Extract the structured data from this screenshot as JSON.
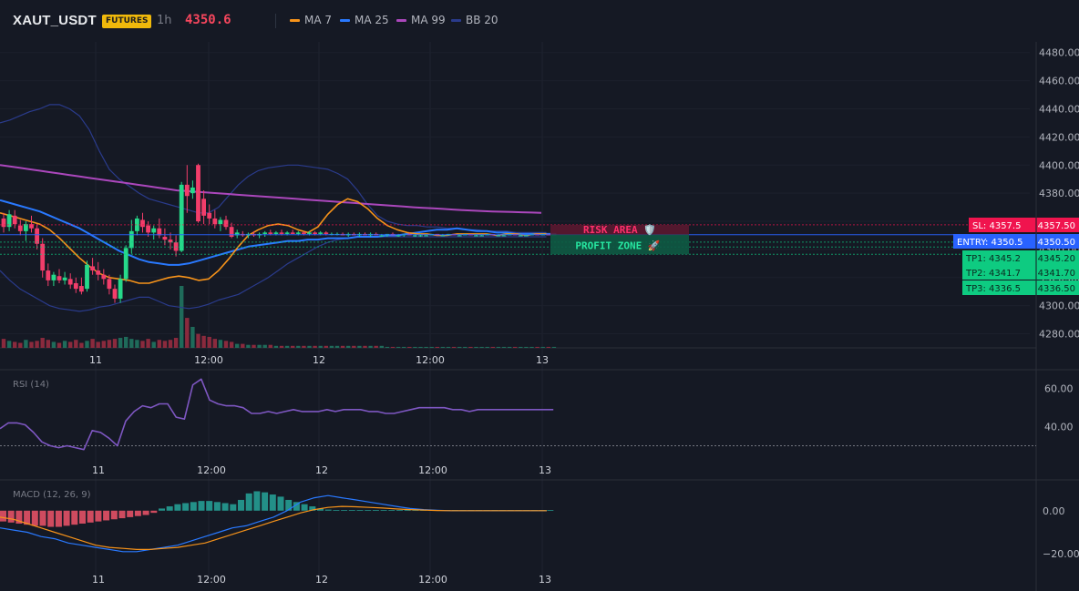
{
  "header": {
    "symbol": "XAUT_USDT",
    "badge": "FUTURES",
    "timeframe": "1h",
    "last_price": "4350.6"
  },
  "legend": [
    {
      "label": "MA 7",
      "color": "#f7931a"
    },
    {
      "label": "MA 25",
      "color": "#2979ff"
    },
    {
      "label": "MA 99",
      "color": "#ab47bc"
    },
    {
      "label": "BB 20",
      "color": "#2a3b8c"
    }
  ],
  "colors": {
    "bull": "#26d98a",
    "bear": "#f23d6a",
    "entry": "#2962ff",
    "sl": "#f0144e",
    "tp": "#0ecb81",
    "rsi": "#7e57c2"
  },
  "zones": {
    "risk_label": "RISK AREA 🛡️",
    "profit_label": "PROFIT ZONE 🚀"
  },
  "chart_data": [
    {
      "type": "candlestick",
      "title": "",
      "ylim": [
        4270,
        4485
      ],
      "y_ticks": [
        "4480.00",
        "4460.00",
        "4440.00",
        "4420.00",
        "4400.00",
        "4380.00",
        "4360.00",
        "4340.00",
        "4320.00",
        "4300.00",
        "4280.00"
      ],
      "x_ticks": [
        "11",
        "12:00",
        "12",
        "12:00",
        "13"
      ],
      "ohlc": [
        [
          4362,
          4366,
          4352,
          4356
        ],
        [
          4356,
          4368,
          4353,
          4365
        ],
        [
          4364,
          4368,
          4355,
          4358
        ],
        [
          4357,
          4361,
          4350,
          4353
        ],
        [
          4353,
          4360,
          4346,
          4358
        ],
        [
          4358,
          4364,
          4352,
          4355
        ],
        [
          4355,
          4358,
          4340,
          4344
        ],
        [
          4344,
          4348,
          4320,
          4325
        ],
        [
          4325,
          4330,
          4314,
          4318
        ],
        [
          4318,
          4324,
          4314,
          4322
        ],
        [
          4321,
          4326,
          4316,
          4318
        ],
        [
          4318,
          4324,
          4315,
          4320
        ],
        [
          4319,
          4323,
          4312,
          4315
        ],
        [
          4316,
          4320,
          4309,
          4312
        ],
        [
          4314,
          4320,
          4308,
          4310
        ],
        [
          4312,
          4332,
          4310,
          4329
        ],
        [
          4328,
          4334,
          4322,
          4325
        ],
        [
          4325,
          4331,
          4318,
          4322
        ],
        [
          4322,
          4326,
          4315,
          4319
        ],
        [
          4319,
          4322,
          4308,
          4312
        ],
        [
          4312,
          4315,
          4302,
          4305
        ],
        [
          4305,
          4322,
          4302,
          4319
        ],
        [
          4319,
          4343,
          4317,
          4341
        ],
        [
          4341,
          4361,
          4337,
          4353
        ],
        [
          4353,
          4364,
          4350,
          4362
        ],
        [
          4361,
          4366,
          4352,
          4356
        ],
        [
          4357,
          4360,
          4349,
          4352
        ],
        [
          4352,
          4357,
          4347,
          4355
        ],
        [
          4355,
          4362,
          4348,
          4350
        ],
        [
          4349,
          4355,
          4343,
          4347
        ],
        [
          4347,
          4352,
          4340,
          4345
        ],
        [
          4345,
          4350,
          4335,
          4339
        ],
        [
          4339,
          4388,
          4338,
          4386
        ],
        [
          4386,
          4400,
          4366,
          4378
        ],
        [
          4380,
          4389,
          4376,
          4384
        ],
        [
          4400,
          4401,
          4359,
          4360
        ],
        [
          4376,
          4382,
          4358,
          4364
        ],
        [
          4366,
          4372,
          4358,
          4362
        ],
        [
          4362,
          4368,
          4355,
          4358
        ],
        [
          4358,
          4363,
          4353,
          4361
        ],
        [
          4361,
          4364,
          4354,
          4356
        ],
        [
          4356,
          4359,
          4348,
          4349
        ],
        [
          4350,
          4354,
          4348,
          4352
        ],
        [
          4351,
          4353,
          4349,
          4350
        ],
        [
          4350,
          4352,
          4348,
          4351
        ],
        [
          4351,
          4353,
          4349,
          4350
        ],
        [
          4350,
          4352,
          4348,
          4351
        ],
        [
          4351,
          4353,
          4349,
          4352
        ],
        [
          4352,
          4354,
          4350,
          4351
        ],
        [
          4351,
          4353,
          4350,
          4352
        ],
        [
          4352,
          4354,
          4350,
          4351
        ],
        [
          4351,
          4353,
          4350,
          4352
        ],
        [
          4352,
          4354,
          4351,
          4351
        ],
        [
          4351,
          4353,
          4350,
          4352
        ],
        [
          4352,
          4353,
          4350,
          4351
        ],
        [
          4351,
          4353,
          4350,
          4352
        ],
        [
          4352,
          4353,
          4350,
          4351
        ],
        [
          4351,
          4353,
          4350,
          4352
        ],
        [
          4352,
          4353,
          4350,
          4351
        ],
        [
          4351,
          4352,
          4350,
          4351
        ],
        [
          4351,
          4352,
          4350,
          4351
        ],
        [
          4351,
          4352,
          4350,
          4350
        ],
        [
          4350,
          4352,
          4349,
          4351
        ],
        [
          4351,
          4352,
          4350,
          4350
        ],
        [
          4350,
          4352,
          4349,
          4351
        ],
        [
          4351,
          4352,
          4350,
          4350
        ],
        [
          4350,
          4352,
          4349,
          4351
        ],
        [
          4351,
          4352,
          4350,
          4350
        ],
        [
          4350,
          4351,
          4349,
          4350
        ],
        [
          4350,
          4351,
          4349,
          4351
        ],
        [
          4351,
          4352,
          4350,
          4350
        ],
        [
          4350,
          4351,
          4349,
          4350
        ],
        [
          4350,
          4351,
          4349,
          4351
        ],
        [
          4351,
          4352,
          4350,
          4350
        ],
        [
          4350,
          4351,
          4349,
          4350
        ],
        [
          4350,
          4351,
          4349,
          4350
        ],
        [
          4350,
          4351,
          4350,
          4350
        ],
        [
          4350,
          4351,
          4350,
          4351
        ],
        [
          4351,
          4351,
          4350,
          4350
        ],
        [
          4350,
          4351,
          4350,
          4350
        ],
        [
          4350,
          4351,
          4350,
          4351
        ],
        [
          4351,
          4351,
          4350,
          4350
        ],
        [
          4350,
          4351,
          4350,
          4350
        ],
        [
          4350,
          4351,
          4350,
          4351
        ],
        [
          4351,
          4351,
          4350,
          4350
        ],
        [
          4350,
          4351,
          4350,
          4350
        ],
        [
          4350,
          4351,
          4350,
          4350
        ],
        [
          4350,
          4351,
          4350,
          4351
        ],
        [
          4351,
          4351,
          4350,
          4350
        ],
        [
          4350,
          4351,
          4350,
          4350
        ],
        [
          4350,
          4351,
          4350,
          4350
        ],
        [
          4350,
          4351,
          4350,
          4351
        ],
        [
          4351,
          4351,
          4350,
          4350
        ],
        [
          4350,
          4351,
          4350,
          4350
        ],
        [
          4350,
          4351,
          4350,
          4350
        ],
        [
          4350,
          4351,
          4350,
          4351
        ],
        [
          4351,
          4351,
          4350,
          4350
        ],
        [
          4350,
          4351,
          4350,
          4351
        ],
        [
          4351,
          4351,
          4350,
          4350
        ],
        [
          4350,
          4351,
          4350,
          4351
        ]
      ],
      "volume": [
        9,
        7,
        6,
        5,
        8,
        6,
        7,
        10,
        8,
        6,
        5,
        7,
        6,
        8,
        5,
        7,
        9,
        6,
        7,
        8,
        9,
        10,
        11,
        9,
        8,
        7,
        9,
        6,
        8,
        7,
        8,
        10,
        62,
        30,
        21,
        14,
        12,
        11,
        9,
        8,
        7,
        6,
        4,
        4,
        3,
        3,
        3,
        3,
        3,
        2,
        2,
        2,
        2,
        2,
        2,
        2,
        2,
        2,
        2,
        2,
        2,
        2,
        2,
        2,
        2,
        2,
        2,
        2,
        2,
        1,
        1,
        1,
        1,
        1,
        1,
        1,
        1,
        1,
        1,
        1,
        1,
        1,
        1,
        1,
        1,
        1,
        1,
        1,
        1,
        1,
        1,
        1,
        1,
        1,
        1,
        1,
        1,
        1,
        1,
        1
      ],
      "ma99": [
        4400,
        4399,
        4398,
        4397,
        4396,
        4395,
        4394,
        4393,
        4392,
        4391,
        4390,
        4389,
        4388,
        4387,
        4386,
        4385,
        4384,
        4383,
        4382,
        4381.5,
        4381,
        4380.5,
        4380,
        4379.5,
        4379,
        4378.5,
        4378,
        4377.5,
        4377,
        4376.5,
        4376,
        4375.5,
        4375,
        4374.5,
        4374,
        4373.5,
        4373,
        4372.5,
        4372,
        4371.5,
        4371,
        4370.5,
        4370,
        4369.6,
        4369.2,
        4368.8,
        4368.4,
        4368,
        4367.6,
        4367.3,
        4367,
        4366.8,
        4366.6,
        4366.4,
        4366.2,
        4366
      ],
      "ma25": [
        4375,
        4373,
        4371,
        4369,
        4367,
        4364,
        4361,
        4358,
        4355,
        4351,
        4347,
        4343,
        4339,
        4336,
        4333,
        4331,
        4330,
        4329,
        4329,
        4330,
        4332,
        4334,
        4336,
        4338,
        4340,
        4342,
        4343,
        4344,
        4345,
        4346,
        4346,
        4347,
        4347,
        4348,
        4348,
        4348,
        4349,
        4349,
        4349,
        4350,
        4350,
        4351,
        4352,
        4353,
        4354,
        4354,
        4355,
        4354,
        4353,
        4353,
        4352,
        4352,
        4351,
        4351,
        4351,
        4351,
        4351
      ],
      "ma7": [
        4366,
        4364,
        4362,
        4360,
        4358,
        4354,
        4348,
        4341,
        4334,
        4328,
        4323,
        4320,
        4319,
        4318,
        4316,
        4316,
        4318,
        4320,
        4321,
        4320,
        4318,
        4319,
        4325,
        4333,
        4342,
        4350,
        4354,
        4357,
        4358,
        4357,
        4354,
        4352,
        4356,
        4365,
        4372,
        4376,
        4374,
        4369,
        4362,
        4357,
        4354,
        4352,
        4351,
        4351,
        4350,
        4350,
        4351,
        4351,
        4351,
        4351,
        4350,
        4351,
        4351,
        4350,
        4351,
        4351
      ],
      "bb_upper": [
        4430,
        4432,
        4435,
        4438,
        4440,
        4443,
        4443,
        4440,
        4435,
        4425,
        4410,
        4397,
        4390,
        4385,
        4380,
        4376,
        4374,
        4372,
        4370,
        4368,
        4366,
        4366,
        4370,
        4378,
        4386,
        4392,
        4396,
        4398,
        4399,
        4400,
        4400,
        4399,
        4398,
        4397,
        4394,
        4390,
        4382,
        4372,
        4364,
        4360,
        4358,
        4357,
        4357,
        4356,
        4356,
        4355,
        4355,
        4354,
        4354,
        4353,
        4353,
        4353,
        4352,
        4352,
        4352,
        4352
      ],
      "bb_lower": [
        4325,
        4318,
        4312,
        4308,
        4304,
        4300,
        4298,
        4297,
        4296,
        4297,
        4299,
        4300,
        4302,
        4304,
        4306,
        4306,
        4303,
        4300,
        4299,
        4298,
        4299,
        4301,
        4304,
        4306,
        4308,
        4312,
        4316,
        4320,
        4325,
        4330,
        4334,
        4338,
        4342,
        4345,
        4347,
        4348,
        4349,
        4349,
        4349,
        4349,
        4349,
        4349,
        4349,
        4349,
        4349,
        4349,
        4349,
        4349,
        4349,
        4349,
        4349,
        4349,
        4349,
        4349,
        4349,
        4349
      ],
      "levels": [
        {
          "label": "SL: 4357.5",
          "value": 4357.5,
          "price": "4357.50",
          "kind": "sl"
        },
        {
          "label": "ENTRY: 4350.5",
          "value": 4350.5,
          "price": "4350.50",
          "kind": "entry"
        },
        {
          "label": "TP1: 4345.2",
          "value": 4345.2,
          "price": "4345.20",
          "kind": "tp"
        },
        {
          "label": "TP2: 4341.7",
          "value": 4341.7,
          "price": "4341.70",
          "kind": "tp"
        },
        {
          "label": "TP3: 4336.5",
          "value": 4336.5,
          "price": "4336.50",
          "kind": "tp"
        }
      ]
    },
    {
      "type": "line",
      "title": "RSI (14)",
      "ylim": [
        25,
        68
      ],
      "y_ticks": [
        "60.00",
        "40.00"
      ],
      "x_ticks": [
        "11",
        "12:00",
        "12",
        "12:00",
        "13"
      ],
      "level": 30,
      "values": [
        39,
        42,
        42,
        41,
        37,
        32,
        30,
        29,
        30,
        29,
        28,
        38,
        37,
        34,
        30,
        43,
        48,
        51,
        50,
        52,
        52,
        45,
        44,
        62,
        65,
        54,
        52,
        51,
        51,
        50,
        47,
        47,
        48,
        47,
        48,
        49,
        48,
        48,
        48,
        49,
        48,
        49,
        49,
        49,
        48,
        48,
        47,
        47,
        48,
        49,
        50,
        50,
        50,
        50,
        49,
        49,
        48,
        49,
        49,
        49,
        49,
        49,
        49,
        49,
        49,
        49,
        49
      ]
    },
    {
      "type": "bar",
      "title": "MACD (12, 26, 9)",
      "ylim": [
        -25,
        13
      ],
      "y_ticks": [
        "0.00",
        "−20.00"
      ],
      "x_ticks": [
        "11",
        "12:00",
        "12",
        "12:00",
        "13"
      ],
      "histogram": [
        -5,
        -5.5,
        -6,
        -6.5,
        -7,
        -7,
        -7.5,
        -7.5,
        -7,
        -6.5,
        -6,
        -5.5,
        -5,
        -4.5,
        -4,
        -3.5,
        -3,
        -2.5,
        -2,
        -1,
        1,
        2,
        3,
        3.5,
        4,
        4.5,
        4.5,
        4,
        3.5,
        3,
        5,
        8,
        9,
        8.5,
        7.5,
        6.5,
        5,
        4,
        3,
        2,
        1,
        0.5,
        0.3,
        0.3,
        0.3,
        0.3,
        0.3,
        0.3,
        0.3,
        0.3,
        0.3,
        0.3,
        0.3,
        0.3,
        0.3,
        0.3,
        0.3,
        0.3,
        0.3,
        0.3,
        0.3,
        0.3,
        0.3,
        0.3,
        0.3,
        0.3,
        0.3,
        0.3,
        0.3,
        0.3
      ],
      "macd_line": [
        -8,
        -9,
        -10,
        -12,
        -13,
        -15,
        -16,
        -17,
        -18,
        -19,
        -19,
        -18,
        -17,
        -16,
        -14,
        -12,
        -10,
        -8,
        -7,
        -5,
        -3,
        0,
        4,
        6,
        7,
        6,
        5,
        4,
        3,
        2,
        1,
        0.5,
        0.2,
        0,
        0,
        0,
        0,
        0,
        0,
        0,
        0
      ],
      "signal_line": [
        -3,
        -4,
        -6,
        -8,
        -10,
        -12,
        -14,
        -16,
        -17,
        -17.5,
        -18,
        -18,
        -17.5,
        -17,
        -16,
        -15,
        -13,
        -11,
        -9,
        -7,
        -5,
        -3,
        -1,
        0.5,
        1.5,
        2,
        1.8,
        1.5,
        1.2,
        0.8,
        0.5,
        0.3,
        0.1,
        0,
        0,
        0,
        0,
        0,
        0,
        0,
        0
      ]
    }
  ]
}
